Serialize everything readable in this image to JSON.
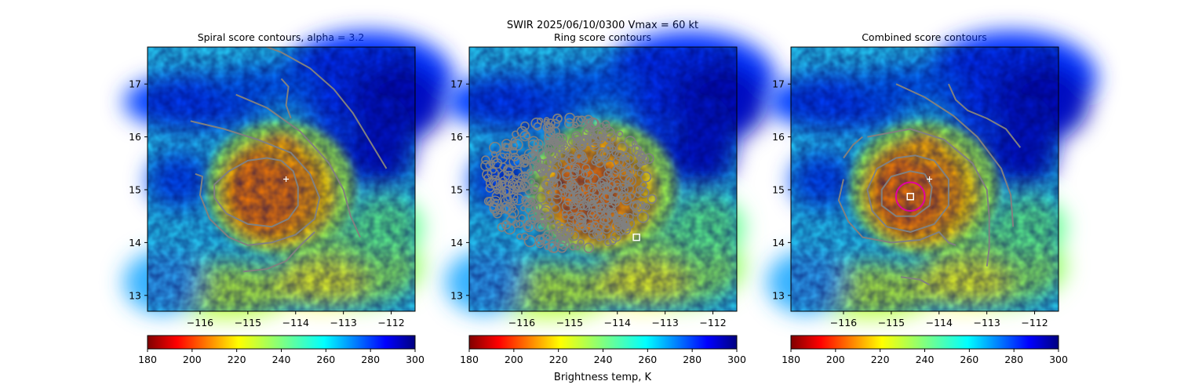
{
  "suptitle": "SWIR  2025/06/10/0300    Vmax = 60 kt",
  "colorbar_label": "Brightness temp, K",
  "colors": {
    "contour": "#808080",
    "best_center_circle": "#e000a0",
    "marker": "#ffffff"
  },
  "chart_data": [
    {
      "type": "heatmap",
      "title": "Spiral score contours, alpha =  3.2",
      "xlim": [
        -117.1,
        -111.5
      ],
      "ylim": [
        12.7,
        17.7
      ],
      "xticks": [
        -116,
        -115,
        -114,
        -113,
        -112
      ],
      "xtick_labels": [
        "−116",
        "−115",
        "−114",
        "−113",
        "−112"
      ],
      "yticks": [
        13,
        14,
        15,
        16,
        17
      ],
      "ytick_labels": [
        "13",
        "14",
        "15",
        "16",
        "17"
      ],
      "colorbar": {
        "range": [
          180,
          300
        ],
        "ticks": [
          180,
          200,
          220,
          240,
          260,
          280,
          300
        ],
        "tick_labels": [
          "180",
          "200",
          "220",
          "240",
          "260",
          "280",
          "300"
        ],
        "colormap": "jet_r",
        "label": ""
      },
      "markers": [
        {
          "kind": "plus",
          "x": -114.2,
          "y": 15.2
        }
      ],
      "contours": [
        {
          "level": "inner",
          "points": [
            [
              -114.3,
              15.55
            ],
            [
              -114.05,
              15.35
            ],
            [
              -113.95,
              15.05
            ],
            [
              -113.95,
              14.7
            ],
            [
              -114.15,
              14.45
            ],
            [
              -114.5,
              14.3
            ],
            [
              -115.0,
              14.35
            ],
            [
              -115.45,
              14.55
            ],
            [
              -115.7,
              14.85
            ],
            [
              -115.7,
              15.1
            ],
            [
              -115.4,
              15.35
            ],
            [
              -115.0,
              15.55
            ],
            [
              -114.6,
              15.6
            ],
            [
              -114.3,
              15.55
            ]
          ]
        },
        {
          "level": "middle",
          "points": [
            [
              -116.2,
              16.3
            ],
            [
              -115.5,
              16.15
            ],
            [
              -114.8,
              15.95
            ],
            [
              -114.1,
              15.7
            ],
            [
              -113.7,
              15.3
            ],
            [
              -113.5,
              14.85
            ],
            [
              -113.6,
              14.45
            ],
            [
              -114.0,
              14.15
            ],
            [
              -114.5,
              14.0
            ],
            [
              -115.0,
              13.95
            ],
            [
              -115.4,
              14.1
            ],
            [
              -115.8,
              14.45
            ],
            [
              -116.0,
              14.9
            ],
            [
              -115.95,
              15.25
            ],
            [
              -116.1,
              15.3
            ]
          ]
        },
        {
          "level": "outer",
          "points": [
            [
              -115.25,
              16.8
            ],
            [
              -114.6,
              16.55
            ],
            [
              -113.9,
              16.1
            ],
            [
              -113.3,
              15.5
            ],
            [
              -113.0,
              15.0
            ],
            [
              -112.85,
              14.5
            ],
            [
              -112.65,
              14.1
            ]
          ]
        },
        {
          "level": "far",
          "points": [
            [
              -114.9,
              17.8
            ],
            [
              -114.3,
              17.6
            ],
            [
              -113.7,
              17.3
            ],
            [
              -113.2,
              16.9
            ],
            [
              -112.8,
              16.45
            ],
            [
              -112.5,
              16.0
            ],
            [
              -112.3,
              15.7
            ],
            [
              -112.1,
              15.4
            ]
          ]
        },
        {
          "level": "south",
          "points": [
            [
              -115.1,
              13.45
            ],
            [
              -114.6,
              13.5
            ],
            [
              -114.2,
              13.65
            ],
            [
              -113.9,
              13.95
            ],
            [
              -113.6,
              14.2
            ]
          ]
        },
        {
          "level": "north-fragment",
          "points": [
            [
              -114.3,
              17.1
            ],
            [
              -114.15,
              16.95
            ],
            [
              -114.2,
              16.6
            ],
            [
              -114.1,
              16.35
            ]
          ]
        }
      ]
    },
    {
      "type": "heatmap",
      "title": "Ring score contours",
      "xlim": [
        -117.1,
        -111.5
      ],
      "ylim": [
        12.7,
        17.7
      ],
      "xticks": [
        -116,
        -115,
        -114,
        -113,
        -112
      ],
      "xtick_labels": [
        "−116",
        "−115",
        "−114",
        "−113",
        "−112"
      ],
      "yticks": [
        13,
        14,
        15,
        16,
        17
      ],
      "ytick_labels": [
        "13",
        "14",
        "15",
        "16",
        "17"
      ],
      "colorbar": {
        "range": [
          180,
          300
        ],
        "ticks": [
          180,
          200,
          220,
          240,
          260,
          280,
          300
        ],
        "tick_labels": [
          "180",
          "200",
          "220",
          "240",
          "260",
          "280",
          "300"
        ],
        "colormap": "jet_r",
        "label": "Brightness temp, K"
      },
      "markers": [
        {
          "kind": "square",
          "x": -113.6,
          "y": 14.1
        }
      ],
      "contours": []
    },
    {
      "type": "heatmap",
      "title": "Combined score contours",
      "xlim": [
        -117.1,
        -111.5
      ],
      "ylim": [
        12.7,
        17.7
      ],
      "xticks": [
        -116,
        -115,
        -114,
        -113,
        -112
      ],
      "xtick_labels": [
        "−116",
        "−115",
        "−114",
        "−113",
        "−112"
      ],
      "yticks": [
        13,
        14,
        15,
        16,
        17
      ],
      "ytick_labels": [
        "13",
        "14",
        "15",
        "16",
        "17"
      ],
      "colorbar": {
        "range": [
          180,
          300
        ],
        "ticks": [
          180,
          200,
          220,
          240,
          260,
          280,
          300
        ],
        "tick_labels": [
          "180",
          "200",
          "220",
          "240",
          "260",
          "280",
          "300"
        ],
        "colormap": "jet_r",
        "label": ""
      },
      "markers": [
        {
          "kind": "plus",
          "x": -114.2,
          "y": 15.2
        },
        {
          "kind": "square",
          "x": -114.6,
          "y": 14.87
        },
        {
          "kind": "circle",
          "x": -114.6,
          "y": 14.87,
          "radius_deg": 0.3
        }
      ],
      "contours": [
        {
          "level": "inner",
          "points": [
            [
              -114.3,
              15.3
            ],
            [
              -114.15,
              15.05
            ],
            [
              -114.2,
              14.7
            ],
            [
              -114.5,
              14.5
            ],
            [
              -114.9,
              14.5
            ],
            [
              -115.2,
              14.7
            ],
            [
              -115.2,
              15.0
            ],
            [
              -115.0,
              15.25
            ],
            [
              -114.6,
              15.35
            ],
            [
              -114.3,
              15.3
            ]
          ]
        },
        {
          "level": "middle",
          "points": [
            [
              -114.1,
              15.55
            ],
            [
              -113.8,
              15.2
            ],
            [
              -113.8,
              14.7
            ],
            [
              -114.1,
              14.35
            ],
            [
              -114.6,
              14.2
            ],
            [
              -115.1,
              14.3
            ],
            [
              -115.4,
              14.6
            ],
            [
              -115.5,
              15.0
            ],
            [
              -115.3,
              15.4
            ],
            [
              -114.9,
              15.6
            ],
            [
              -114.5,
              15.65
            ],
            [
              -114.1,
              15.55
            ]
          ]
        },
        {
          "level": "outer",
          "points": [
            [
              -115.5,
              16.0
            ],
            [
              -114.6,
              16.15
            ],
            [
              -113.9,
              15.95
            ],
            [
              -113.3,
              15.5
            ],
            [
              -113.0,
              15.0
            ],
            [
              -112.95,
              14.5
            ],
            [
              -112.95,
              13.9
            ],
            [
              -113.0,
              13.55
            ]
          ]
        },
        {
          "level": "west",
          "points": [
            [
              -116.0,
              15.6
            ],
            [
              -115.8,
              15.85
            ],
            [
              -115.6,
              16.0
            ]
          ]
        },
        {
          "level": "southwest",
          "points": [
            [
              -116.0,
              15.2
            ],
            [
              -116.1,
              14.8
            ],
            [
              -115.9,
              14.4
            ],
            [
              -115.6,
              14.1
            ],
            [
              -115.0,
              14.0
            ],
            [
              -114.4,
              14.05
            ],
            [
              -114.0,
              14.2
            ],
            [
              -113.8,
              14.0
            ],
            [
              -113.65,
              13.95
            ]
          ]
        },
        {
          "level": "far",
          "points": [
            [
              -114.9,
              17.0
            ],
            [
              -114.3,
              16.75
            ],
            [
              -113.7,
              16.4
            ],
            [
              -113.2,
              16.0
            ],
            [
              -112.7,
              15.4
            ],
            [
              -112.5,
              14.9
            ],
            [
              -112.45,
              14.3
            ]
          ]
        },
        {
          "level": "northeast",
          "points": [
            [
              -113.8,
              17.0
            ],
            [
              -113.65,
              16.7
            ],
            [
              -113.4,
              16.5
            ],
            [
              -113.0,
              16.35
            ],
            [
              -112.6,
              16.15
            ],
            [
              -112.3,
              15.8
            ]
          ]
        },
        {
          "level": "south",
          "points": [
            [
              -114.8,
              13.35
            ],
            [
              -114.4,
              13.3
            ],
            [
              -114.2,
              13.2
            ]
          ]
        }
      ]
    }
  ]
}
